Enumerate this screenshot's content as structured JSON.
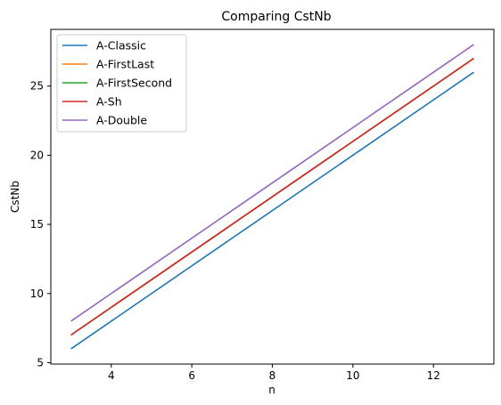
{
  "chart_data": {
    "type": "line",
    "title": "Comparing CstNb",
    "xlabel": "n",
    "ylabel": "CstNb",
    "xlim": [
      2.5,
      13.5
    ],
    "ylim": [
      4.9,
      29.1
    ],
    "xticks": [
      4,
      6,
      8,
      10,
      12
    ],
    "yticks": [
      5,
      10,
      15,
      20,
      25
    ],
    "grid": false,
    "legend_position": "upper-left",
    "series": [
      {
        "name": "A-Classic",
        "color": "#1f77b4",
        "x": [
          3,
          13
        ],
        "y": [
          6,
          26
        ]
      },
      {
        "name": "A-FirstLast",
        "color": "#ff7f0e",
        "x": [
          3,
          13
        ],
        "y": [
          7,
          27
        ]
      },
      {
        "name": "A-FirstSecond",
        "color": "#2ca02c",
        "x": [
          3,
          13
        ],
        "y": [
          7,
          27
        ]
      },
      {
        "name": "A-Sh",
        "color": "#d62728",
        "x": [
          3,
          13
        ],
        "y": [
          7,
          27
        ]
      },
      {
        "name": "A-Double",
        "color": "#9467bd",
        "x": [
          3,
          13
        ],
        "y": [
          8,
          28
        ]
      }
    ]
  }
}
